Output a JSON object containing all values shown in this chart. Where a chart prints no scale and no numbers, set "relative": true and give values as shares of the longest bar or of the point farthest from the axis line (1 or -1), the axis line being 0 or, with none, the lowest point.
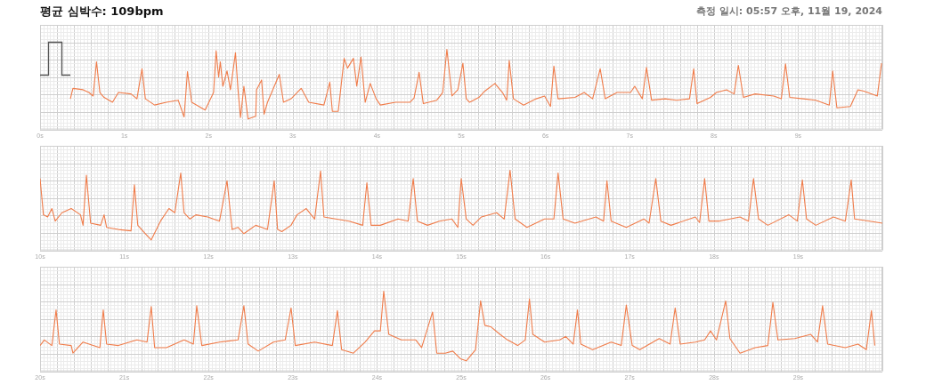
{
  "chart_data": [
    {
      "type": "line",
      "title": "평균 심박수: 109bpm",
      "subtitle": "측정 일시: 05:57 오후, 11월 19, 2024",
      "relative": true,
      "grid": true,
      "tick_labels": "x",
      "xlim": [
        0,
        10
      ],
      "xticks": [
        {
          "value": 0,
          "label": "0s"
        },
        {
          "value": 1,
          "label": "1s"
        },
        {
          "value": 2,
          "label": "2s"
        },
        {
          "value": 3,
          "label": "3s"
        },
        {
          "value": 4,
          "label": "4s"
        },
        {
          "value": 5,
          "label": "5s"
        },
        {
          "value": 6,
          "label": "6s"
        },
        {
          "value": 7,
          "label": "7s"
        },
        {
          "value": 8,
          "label": "8s"
        },
        {
          "value": 9,
          "label": "9s"
        },
        {
          "value": 10,
          "label": null
        }
      ],
      "series": [
        {
          "color": "#f07c4a",
          "x": [
            0.36,
            0.39,
            0.51,
            0.58,
            0.63,
            0.67,
            0.71,
            0.76,
            0.86,
            0.93,
            1.08,
            1.15,
            1.21,
            1.25,
            1.36,
            1.5,
            1.64,
            1.71,
            1.75,
            1.8,
            1.96,
            2.06,
            2.09,
            2.12,
            2.14,
            2.17,
            2.22,
            2.26,
            2.32,
            2.35,
            2.38,
            2.42,
            2.47,
            2.56,
            2.57,
            2.63,
            2.66,
            2.7,
            2.84,
            2.89,
            2.98,
            3.1,
            3.19,
            3.37,
            3.44,
            3.47,
            3.54,
            3.61,
            3.65,
            3.72,
            3.76,
            3.81,
            3.86,
            3.92,
            3.99,
            4.04,
            4.22,
            4.39,
            4.44,
            4.5,
            4.55,
            4.71,
            4.78,
            4.83,
            4.89,
            4.96,
            5.02,
            5.06,
            5.1,
            5.21,
            5.28,
            5.4,
            5.49,
            5.54,
            5.57,
            5.62,
            5.74,
            5.89,
            5.99,
            6.06,
            6.1,
            6.15,
            6.35,
            6.46,
            6.56,
            6.65,
            6.71,
            6.85,
            7.01,
            7.06,
            7.15,
            7.2,
            7.26,
            7.42,
            7.56,
            7.71,
            7.76,
            7.8,
            7.96,
            8.03,
            8.15,
            8.24,
            8.29,
            8.35,
            8.49,
            8.71,
            8.8,
            8.85,
            8.9,
            9.06,
            9.21,
            9.37,
            9.41,
            9.46,
            9.62,
            9.71,
            9.78,
            9.94,
            9.99
          ],
          "values": [
            0.29,
            0.44,
            0.42,
            0.38,
            0.33,
            0.82,
            0.38,
            0.31,
            0.24,
            0.38,
            0.36,
            0.29,
            0.72,
            0.29,
            0.2,
            0.24,
            0.27,
            0.03,
            0.68,
            0.24,
            0.13,
            0.38,
            0.98,
            0.6,
            0.82,
            0.47,
            0.69,
            0.42,
            0.95,
            0.42,
            0.02,
            0.47,
            0,
            0.04,
            0.42,
            0.56,
            0.07,
            0.24,
            0.64,
            0.24,
            0.29,
            0.44,
            0.24,
            0.2,
            0.53,
            0.11,
            0.11,
            0.87,
            0.73,
            0.87,
            0.47,
            0.89,
            0.24,
            0.51,
            0.29,
            0.2,
            0.24,
            0.24,
            0.3,
            0.67,
            0.22,
            0.27,
            0.38,
            1,
            0.33,
            0.42,
            0.8,
            0.29,
            0.24,
            0.31,
            0.4,
            0.51,
            0.38,
            0.27,
            0.84,
            0.29,
            0.2,
            0.29,
            0.33,
            0.18,
            0.76,
            0.29,
            0.31,
            0.38,
            0.29,
            0.72,
            0.29,
            0.38,
            0.38,
            0.47,
            0.29,
            0.74,
            0.27,
            0.29,
            0.27,
            0.29,
            0.72,
            0.22,
            0.31,
            0.38,
            0.42,
            0.36,
            0.77,
            0.31,
            0.36,
            0.33,
            0.29,
            0.79,
            0.31,
            0.29,
            0.27,
            0.2,
            0.69,
            0.16,
            0.18,
            0.42,
            0.4,
            0.33,
            0.8
          ]
        }
      ]
    },
    {
      "type": "line",
      "relative": true,
      "grid": true,
      "tick_labels": "x",
      "xlim": [
        10,
        20
      ],
      "xticks": [
        {
          "value": 10,
          "label": "10s"
        },
        {
          "value": 11,
          "label": "11s"
        },
        {
          "value": 12,
          "label": "12s"
        },
        {
          "value": 13,
          "label": "13s"
        },
        {
          "value": 14,
          "label": "14s"
        },
        {
          "value": 15,
          "label": "15s"
        },
        {
          "value": 16,
          "label": "16s"
        },
        {
          "value": 17,
          "label": "17s"
        },
        {
          "value": 18,
          "label": "18s"
        },
        {
          "value": 19,
          "label": "19s"
        },
        {
          "value": 20,
          "label": null
        }
      ],
      "series": [
        {
          "color": "#f07c4a",
          "x": [
            10.0,
            10.04,
            10.09,
            10.14,
            10.18,
            10.26,
            10.37,
            10.48,
            10.51,
            10.55,
            10.6,
            10.72,
            10.76,
            10.79,
            10.93,
            11.08,
            11.12,
            11.16,
            11.25,
            11.32,
            11.43,
            11.53,
            11.6,
            11.67,
            11.71,
            11.78,
            11.85,
            11.99,
            12.13,
            12.22,
            12.28,
            12.35,
            12.42,
            12.56,
            12.7,
            12.78,
            12.82,
            12.87,
            12.98,
            13.05,
            13.16,
            13.26,
            13.33,
            13.37,
            13.51,
            13.67,
            13.83,
            13.88,
            13.93,
            14.04,
            14.25,
            14.37,
            14.43,
            14.48,
            14.6,
            14.74,
            14.89,
            14.96,
            15.0,
            15.06,
            15.14,
            15.24,
            15.42,
            15.51,
            15.58,
            15.64,
            15.78,
            15.99,
            16.1,
            16.15,
            16.21,
            16.35,
            16.6,
            16.69,
            16.73,
            16.78,
            16.96,
            17.17,
            17.23,
            17.31,
            17.37,
            17.49,
            17.78,
            17.83,
            17.89,
            17.94,
            18.06,
            18.31,
            18.41,
            18.47,
            18.53,
            18.64,
            18.89,
            18.99,
            19.05,
            19.1,
            19.21,
            19.42,
            19.56,
            19.63,
            19.67,
            19.85,
            20.0
          ],
          "values": [
            0.88,
            0.36,
            0.33,
            0.45,
            0.27,
            0.39,
            0.45,
            0.36,
            0.21,
            0.93,
            0.24,
            0.21,
            0.36,
            0.18,
            0.15,
            0.13,
            0.79,
            0.21,
            0.09,
            0,
            0.27,
            0.45,
            0.39,
            0.96,
            0.39,
            0.3,
            0.36,
            0.33,
            0.27,
            0.85,
            0.15,
            0.18,
            0.09,
            0.21,
            0.15,
            0.85,
            0.15,
            0.12,
            0.21,
            0.36,
            0.45,
            0.3,
            0.99,
            0.33,
            0.3,
            0.27,
            0.21,
            0.82,
            0.21,
            0.21,
            0.3,
            0.27,
            0.88,
            0.27,
            0.21,
            0.27,
            0.3,
            0.18,
            0.88,
            0.3,
            0.21,
            0.33,
            0.39,
            0.3,
            1,
            0.3,
            0.18,
            0.3,
            0.3,
            0.96,
            0.3,
            0.24,
            0.33,
            0.27,
            0.85,
            0.27,
            0.18,
            0.3,
            0.24,
            0.88,
            0.27,
            0.21,
            0.33,
            0.25,
            0.88,
            0.27,
            0.27,
            0.33,
            0.27,
            0.88,
            0.3,
            0.21,
            0.36,
            0.27,
            0.86,
            0.3,
            0.21,
            0.33,
            0.27,
            0.86,
            0.3,
            0.27,
            0.24
          ]
        }
      ]
    },
    {
      "type": "line",
      "relative": true,
      "grid": true,
      "tick_labels": "x",
      "xlim": [
        20,
        30
      ],
      "xticks": [
        {
          "value": 20,
          "label": "20s"
        },
        {
          "value": 21,
          "label": "21s"
        },
        {
          "value": 22,
          "label": "22s"
        },
        {
          "value": 23,
          "label": "23s"
        },
        {
          "value": 24,
          "label": "24s"
        },
        {
          "value": 25,
          "label": "25s"
        },
        {
          "value": 26,
          "label": "26s"
        },
        {
          "value": 27,
          "label": "27s"
        },
        {
          "value": 28,
          "label": "28s"
        },
        {
          "value": 29,
          "label": "29s"
        },
        {
          "value": 30,
          "label": null
        }
      ],
      "series": [
        {
          "color": "#f07c4a",
          "x": [
            20.0,
            20.05,
            20.14,
            20.19,
            20.23,
            20.37,
            20.39,
            20.51,
            20.71,
            20.75,
            20.79,
            20.93,
            21.15,
            21.27,
            21.32,
            21.36,
            21.5,
            21.71,
            21.82,
            21.86,
            21.92,
            22.13,
            22.35,
            22.42,
            22.47,
            22.59,
            22.77,
            22.91,
            22.98,
            23.03,
            23.26,
            23.47,
            23.53,
            23.58,
            23.72,
            23.86,
            23.97,
            24.04,
            24.08,
            24.14,
            24.29,
            24.46,
            24.53,
            24.66,
            24.71,
            24.81,
            24.9,
            24.99,
            25.06,
            25.17,
            25.23,
            25.28,
            25.35,
            25.46,
            25.55,
            25.67,
            25.76,
            25.81,
            25.85,
            25.99,
            26.17,
            26.24,
            26.33,
            26.38,
            26.42,
            26.56,
            26.78,
            26.9,
            26.96,
            27.03,
            27.12,
            27.35,
            27.48,
            27.54,
            27.6,
            27.78,
            27.89,
            27.96,
            28.03,
            28.14,
            28.19,
            28.31,
            28.49,
            28.64,
            28.7,
            28.76,
            28.96,
            29.15,
            29.23,
            29.29,
            29.35,
            29.56,
            29.71,
            29.81,
            29.87,
            29.91
          ],
          "values": [
            0.22,
            0.3,
            0.22,
            0.73,
            0.24,
            0.22,
            0.11,
            0.27,
            0.19,
            0.73,
            0.24,
            0.22,
            0.3,
            0.27,
            0.78,
            0.19,
            0.19,
            0.3,
            0.24,
            0.79,
            0.22,
            0.27,
            0.3,
            0.79,
            0.24,
            0.14,
            0.27,
            0.3,
            0.76,
            0.22,
            0.27,
            0.22,
            0.72,
            0.16,
            0.11,
            0.27,
            0.43,
            0.43,
            1,
            0.38,
            0.3,
            0.3,
            0.19,
            0.7,
            0.11,
            0.11,
            0.14,
            0.03,
            0,
            0.16,
            0.86,
            0.51,
            0.49,
            0.38,
            0.3,
            0.22,
            0.3,
            0.89,
            0.38,
            0.27,
            0.3,
            0.35,
            0.24,
            0.73,
            0.24,
            0.16,
            0.27,
            0.22,
            0.8,
            0.22,
            0.16,
            0.32,
            0.24,
            0.76,
            0.24,
            0.27,
            0.3,
            0.43,
            0.3,
            0.86,
            0.32,
            0.11,
            0.19,
            0.22,
            0.84,
            0.3,
            0.32,
            0.38,
            0.27,
            0.79,
            0.24,
            0.19,
            0.24,
            0.16,
            0.72,
            0.22
          ]
        }
      ]
    }
  ]
}
